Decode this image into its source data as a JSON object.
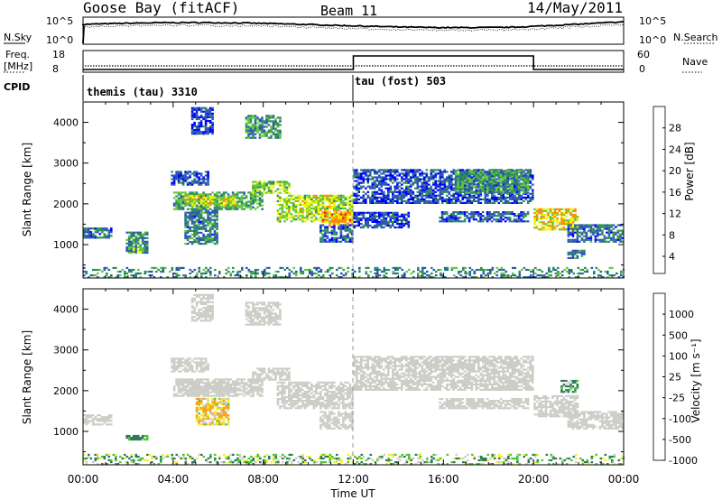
{
  "header": {
    "station": "Goose Bay (fitACF)",
    "beam": "Beam 11",
    "date": "14/May/2011"
  },
  "top_panels": {
    "noise": {
      "left_label": "N.Sky",
      "right_label": "N.Search",
      "left_ticks": [
        "10^5",
        "10^0"
      ],
      "right_ticks": [
        "10^5",
        "10^0"
      ]
    },
    "freq": {
      "left_label_line1": "Freq.",
      "left_label_line2": "[MHz]",
      "left_ticks": [
        "18",
        "8"
      ],
      "right_label": "Nave",
      "right_ticks": [
        "60",
        "0"
      ],
      "nave_step": {
        "low": 8,
        "high": 60,
        "start_hour": 12,
        "end_hour": 20
      }
    },
    "cpid": {
      "label": "CPID",
      "modes": [
        {
          "text": "themis (tau) 3310",
          "start_hour": 0
        },
        {
          "text": "tau (fost) 503",
          "start_hour": 12
        }
      ]
    }
  },
  "chart_data": [
    {
      "type": "heatmap",
      "panel": "power",
      "ylabel": "Slant Range [km]",
      "yticks": [
        "1000",
        "2000",
        "3000",
        "4000"
      ],
      "ylim": [
        180,
        4500
      ],
      "x_hours": [
        0,
        24
      ],
      "colorbar": {
        "label": "Power [dB]",
        "ticks": [
          "28",
          "24",
          "20",
          "16",
          "12",
          "8",
          "4"
        ],
        "range": [
          0,
          30
        ],
        "colors": [
          "#0000ff",
          "#2c55b8",
          "#2f8e5a",
          "#63c93a",
          "#f3f300",
          "#ff8a00",
          "#e01a0a"
        ]
      },
      "echo_regions": [
        {
          "h0": 0.0,
          "h1": 1.3,
          "r0": 1150,
          "r1": 1400,
          "val": 8
        },
        {
          "h0": 1.9,
          "h1": 2.9,
          "r0": 780,
          "r1": 1300,
          "val": 10
        },
        {
          "h0": 2.2,
          "h1": 2.7,
          "r0": 800,
          "r1": 900,
          "val": 16
        },
        {
          "h0": 3.9,
          "h1": 5.6,
          "r0": 2450,
          "r1": 2800,
          "val": 6
        },
        {
          "h0": 4.0,
          "h1": 8.0,
          "r0": 1850,
          "r1": 2300,
          "val": 12
        },
        {
          "h0": 4.5,
          "h1": 6.8,
          "r0": 1950,
          "r1": 2200,
          "val": 18
        },
        {
          "h0": 4.5,
          "h1": 6.0,
          "r0": 1000,
          "r1": 1850,
          "val": 9
        },
        {
          "h0": 4.8,
          "h1": 5.8,
          "r0": 3700,
          "r1": 4350,
          "val": 5
        },
        {
          "h0": 7.2,
          "h1": 8.8,
          "r0": 3600,
          "r1": 4150,
          "val": 11
        },
        {
          "h0": 7.5,
          "h1": 9.2,
          "r0": 2250,
          "r1": 2550,
          "val": 16
        },
        {
          "h0": 8.6,
          "h1": 12.0,
          "r0": 1550,
          "r1": 2200,
          "val": 17
        },
        {
          "h0": 10.6,
          "h1": 12.0,
          "r0": 1450,
          "r1": 1800,
          "val": 22
        },
        {
          "h0": 10.5,
          "h1": 12.0,
          "r0": 1050,
          "r1": 1500,
          "val": 7
        },
        {
          "h0": 12.0,
          "h1": 14.5,
          "r0": 1400,
          "r1": 1800,
          "val": 6
        },
        {
          "h0": 12.0,
          "h1": 20.0,
          "r0": 2000,
          "r1": 2850,
          "val": 6
        },
        {
          "h0": 16.5,
          "h1": 19.8,
          "r0": 2250,
          "r1": 2800,
          "val": 12
        },
        {
          "h0": 15.8,
          "h1": 19.8,
          "r0": 1550,
          "r1": 1800,
          "val": 7
        },
        {
          "h0": 20.0,
          "h1": 22.0,
          "r0": 1350,
          "r1": 1850,
          "val": 20
        },
        {
          "h0": 21.5,
          "h1": 24.0,
          "r0": 1050,
          "r1": 1500,
          "val": 8
        },
        {
          "h0": 21.5,
          "h1": 22.3,
          "r0": 650,
          "r1": 850,
          "val": 10
        },
        {
          "h0": 0.0,
          "h1": 24.0,
          "r0": 180,
          "r1": 450,
          "val": 10
        }
      ]
    },
    {
      "type": "heatmap",
      "panel": "velocity",
      "ylabel": "Slant Range [km]",
      "yticks": [
        "1000",
        "2000",
        "3000",
        "4000"
      ],
      "ylim": [
        180,
        4500
      ],
      "x_hours": [
        0,
        24
      ],
      "xlabel": "Time UT",
      "xticks": [
        "00:00",
        "04:00",
        "08:00",
        "12:00",
        "16:00",
        "20:00",
        "00:00"
      ],
      "colorbar": {
        "label": "Velocity [m s⁻¹]",
        "ticks": [
          "1000",
          "500",
          "100",
          "25",
          "-25",
          "-100",
          "-500",
          "-1000"
        ],
        "range": [
          -1000,
          1000
        ],
        "colors": [
          "#1a3fb0",
          "#2e7a59",
          "#52c43a",
          "#cdcdc7",
          "#f3ee28",
          "#f5a21e",
          "#e01a0a"
        ]
      },
      "echo_regions": [
        {
          "h0": 0.0,
          "h1": 1.3,
          "r0": 1150,
          "r1": 1400,
          "val": 0
        },
        {
          "h0": 1.9,
          "h1": 2.9,
          "r0": 780,
          "r1": 900,
          "val": 150
        },
        {
          "h0": 3.9,
          "h1": 5.6,
          "r0": 2450,
          "r1": 2800,
          "val": 0
        },
        {
          "h0": 4.0,
          "h1": 8.0,
          "r0": 1850,
          "r1": 2300,
          "val": 0
        },
        {
          "h0": 4.5,
          "h1": 6.8,
          "r0": 1950,
          "r1": 2200,
          "val": 0
        },
        {
          "h0": 5.0,
          "h1": 6.5,
          "r0": 1150,
          "r1": 1800,
          "val": -90
        },
        {
          "h0": 4.8,
          "h1": 5.8,
          "r0": 3700,
          "r1": 4350,
          "val": 0
        },
        {
          "h0": 7.2,
          "h1": 8.8,
          "r0": 3600,
          "r1": 4150,
          "val": 0
        },
        {
          "h0": 7.5,
          "h1": 9.2,
          "r0": 2250,
          "r1": 2550,
          "val": 0
        },
        {
          "h0": 8.6,
          "h1": 12.0,
          "r0": 1550,
          "r1": 2200,
          "val": 0
        },
        {
          "h0": 10.5,
          "h1": 12.0,
          "r0": 1050,
          "r1": 1500,
          "val": 0
        },
        {
          "h0": 12.0,
          "h1": 20.0,
          "r0": 2000,
          "r1": 2850,
          "val": 0
        },
        {
          "h0": 15.8,
          "h1": 19.8,
          "r0": 1550,
          "r1": 1800,
          "val": 0
        },
        {
          "h0": 20.0,
          "h1": 22.0,
          "r0": 1350,
          "r1": 1850,
          "val": 0
        },
        {
          "h0": 21.5,
          "h1": 24.0,
          "r0": 1050,
          "r1": 1500,
          "val": 0
        },
        {
          "h0": 21.2,
          "h1": 22.0,
          "r0": 1950,
          "r1": 2250,
          "val": 120
        },
        {
          "h0": 0.0,
          "h1": 24.0,
          "r0": 180,
          "r1": 450,
          "val": 60
        }
      ]
    }
  ]
}
